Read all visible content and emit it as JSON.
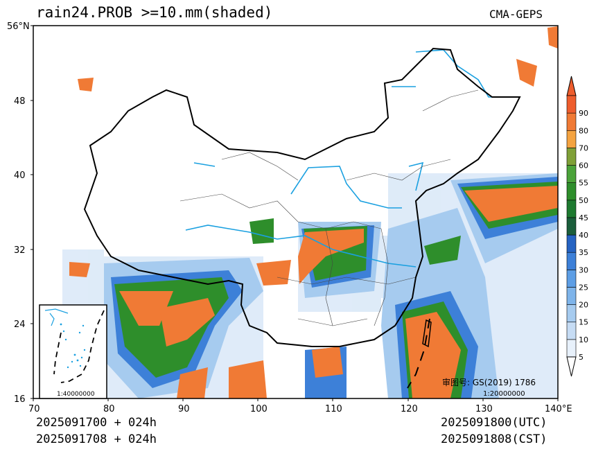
{
  "header": {
    "title": "rain24.PROB >=10.mm(shaded)",
    "source": "CMA-GEPS"
  },
  "footer": {
    "init_utc": "2025091700 + 024h",
    "init_cst": "2025091708 + 024h",
    "valid_utc": "2025091800(UTC)",
    "valid_cst": "2025091808(CST)"
  },
  "map": {
    "lat_labels": [
      "56°N",
      "48",
      "40",
      "32",
      "24",
      "16"
    ],
    "lon_labels": [
      "70",
      "80",
      "90",
      "100",
      "110",
      "120",
      "130",
      "140°E"
    ],
    "inset_scale": "1:40000000",
    "review_no": "审图号: GS(2019) 1786",
    "main_scale": "1:20000000"
  },
  "colorbar": {
    "levels": [
      "5",
      "10",
      "15",
      "20",
      "25",
      "30",
      "35",
      "40",
      "45",
      "50",
      "55",
      "60",
      "70",
      "80",
      "90"
    ],
    "colors": [
      "#e8f1fb",
      "#c6dcf4",
      "#a6cbef",
      "#7eb4ea",
      "#5d9ee5",
      "#3d80d8",
      "#2563c2",
      "#1b5e3b",
      "#1e7a30",
      "#2e8e2b",
      "#4ba33a",
      "#7fa037",
      "#f4a340",
      "#f07a35",
      "#ee5d2d"
    ]
  },
  "colors": {
    "river": "#1aa0e0",
    "border": "#000000",
    "rain_low": "#c6dcf4",
    "rain_mid": "#3d80d8",
    "rain_green": "#2e8e2b",
    "rain_high": "#f07a35"
  }
}
